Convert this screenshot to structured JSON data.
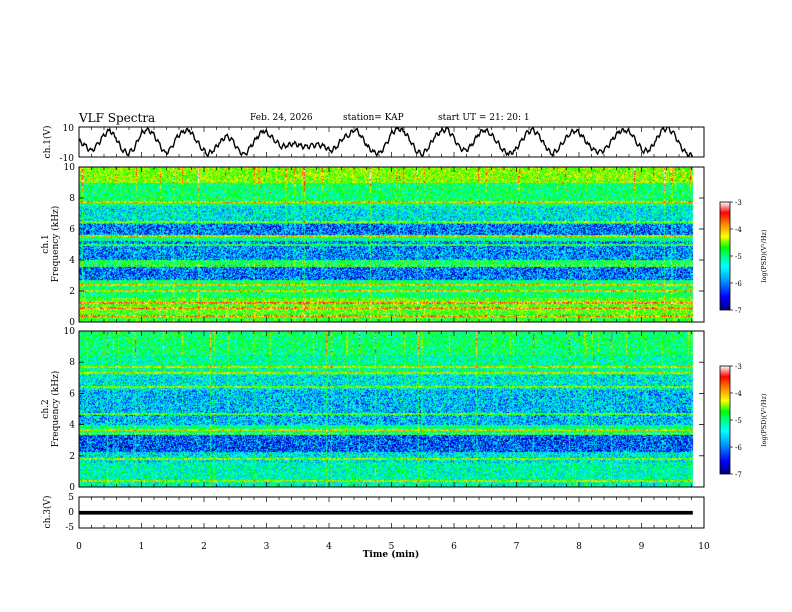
{
  "header": {
    "title": "VLF Spectra",
    "date": "Feb. 24, 2026",
    "station": "station= KAP",
    "start": "start  UT  =   21: 20: 1"
  },
  "colors": {
    "background": "#ffffff",
    "axis": "#000000",
    "colormap": [
      "#000078",
      "#0000ff",
      "#00a0ff",
      "#00ffff",
      "#00ff80",
      "#00ff00",
      "#80ff00",
      "#ffff00",
      "#ff8000",
      "#ff0000",
      "#ffffff"
    ]
  },
  "chart_data": [
    {
      "type": "line",
      "panel": "ch1-waveform",
      "ylabel": "ch.1(V)",
      "ylim": [
        -10,
        10
      ],
      "yticks": [
        "10",
        "-10"
      ],
      "xlim": [
        0,
        10
      ],
      "series": [
        {
          "name": "ch.1",
          "values": [
            0.5,
            -2.5,
            -6.5,
            -2,
            4,
            8,
            3,
            -5,
            -7.5,
            -4,
            5,
            8.5,
            6,
            -1,
            -8,
            -4.5,
            3.5,
            7,
            8,
            2,
            -4,
            -8,
            -5,
            0,
            4,
            1,
            -6,
            -9,
            -3,
            3,
            8,
            5,
            1,
            -3,
            -2,
            -1,
            -2.5,
            -3.5,
            -2.5,
            -2,
            -3,
            -6,
            -3,
            3,
            5,
            9,
            4,
            -3,
            -7,
            -8,
            -2,
            6,
            9,
            7,
            1,
            -6,
            -8,
            -3,
            4,
            7,
            8.5,
            3,
            -4,
            -6,
            -2,
            5,
            8.5,
            6,
            1,
            -5,
            -8,
            -6,
            0,
            6,
            8,
            4,
            -3,
            -8,
            -5,
            1,
            6,
            8,
            4,
            -2,
            -6,
            -7,
            -4,
            2,
            7,
            8,
            6,
            -1,
            -6,
            -5,
            1,
            8,
            9,
            5,
            -3,
            -8,
            -9
          ]
        }
      ]
    },
    {
      "type": "heatmap",
      "panel": "ch1-spectrogram",
      "ylabel": "ch.1\nFrequency (kHz)",
      "ylim": [
        0,
        10
      ],
      "yticks": [
        "0",
        "2",
        "4",
        "6",
        "8",
        "10"
      ],
      "xlim": [
        0,
        10
      ],
      "colorbar": {
        "label": "log(PSD)(V²/Hz)",
        "range": [
          -7,
          -3
        ],
        "ticks": [
          "-3",
          "-4",
          "-5",
          "-6",
          "-7"
        ]
      },
      "band_levels_by_khz": [
        {
          "from": 0,
          "to": 0.5,
          "level": -5.0
        },
        {
          "from": 0.5,
          "to": 1.5,
          "level": -4.8
        },
        {
          "from": 1.5,
          "to": 2.7,
          "level": -5.3
        },
        {
          "from": 2.7,
          "to": 3.6,
          "level": -6.3
        },
        {
          "from": 3.6,
          "to": 4.0,
          "level": -5.2
        },
        {
          "from": 4.0,
          "to": 5.2,
          "level": -6.2
        },
        {
          "from": 5.2,
          "to": 5.6,
          "level": -5.4
        },
        {
          "from": 5.6,
          "to": 6.3,
          "level": -6.3
        },
        {
          "from": 6.3,
          "to": 7.5,
          "level": -5.8
        },
        {
          "from": 7.5,
          "to": 9.0,
          "level": -5.3
        },
        {
          "from": 9.0,
          "to": 10.0,
          "level": -4.6
        }
      ],
      "lines_khz": [
        0.35,
        0.9,
        1.2,
        2.0,
        2.35,
        3.6,
        4.95,
        5.55,
        6.45,
        7.75
      ]
    },
    {
      "type": "heatmap",
      "panel": "ch2-spectrogram",
      "ylabel": "ch.2\nFrequency (kHz)",
      "ylim": [
        0,
        10
      ],
      "yticks": [
        "0",
        "2",
        "4",
        "6",
        "8",
        "10"
      ],
      "xlim": [
        0,
        10
      ],
      "colorbar": {
        "label": "log(PSD)(V²/Hz)",
        "range": [
          -7,
          -3
        ],
        "ticks": [
          "-3",
          "-4",
          "-5",
          "-6",
          "-7"
        ]
      },
      "band_levels_by_khz": [
        {
          "from": 0,
          "to": 0.4,
          "level": -5.6
        },
        {
          "from": 0.4,
          "to": 1.5,
          "level": -5.6
        },
        {
          "from": 1.5,
          "to": 2.2,
          "level": -5.8
        },
        {
          "from": 2.2,
          "to": 3.4,
          "level": -6.4
        },
        {
          "from": 3.4,
          "to": 4.0,
          "level": -5.4
        },
        {
          "from": 4.0,
          "to": 5.0,
          "level": -6.0
        },
        {
          "from": 5.0,
          "to": 6.2,
          "level": -6.0
        },
        {
          "from": 6.2,
          "to": 7.2,
          "level": -5.8
        },
        {
          "from": 7.2,
          "to": 8.5,
          "level": -5.5
        },
        {
          "from": 8.5,
          "to": 10.0,
          "level": -5.3
        }
      ],
      "lines_khz": [
        0.35,
        1.8,
        3.4,
        3.65,
        4.7,
        6.4,
        7.3,
        7.7
      ]
    },
    {
      "type": "line",
      "panel": "ch3-waveform",
      "ylabel": "ch.3(V)",
      "ylim": [
        -5,
        5
      ],
      "yticks": [
        "5",
        "0",
        "-5"
      ],
      "xlim": [
        0,
        10
      ],
      "series": [
        {
          "name": "ch.3",
          "band": [
            -0.7,
            0.5
          ]
        }
      ]
    }
  ],
  "xaxis": {
    "label": "Time  (min)",
    "ticks": [
      "0",
      "1",
      "2",
      "3",
      "4",
      "5",
      "6",
      "7",
      "8",
      "9",
      "10"
    ],
    "max_time_min": 9.82
  }
}
